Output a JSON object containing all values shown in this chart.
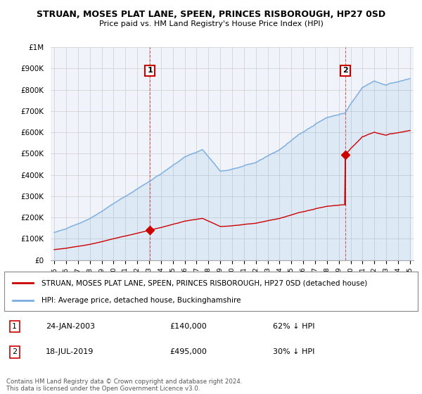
{
  "title": "STRUAN, MOSES PLAT LANE, SPEEN, PRINCES RISBOROUGH, HP27 0SD",
  "subtitle": "Price paid vs. HM Land Registry's House Price Index (HPI)",
  "hpi_label": "HPI: Average price, detached house, Buckinghamshire",
  "property_label": "STRUAN, MOSES PLAT LANE, SPEEN, PRINCES RISBOROUGH, HP27 0SD (detached house)",
  "hpi_color": "#7aace0",
  "price_color": "#cc0000",
  "sale1_year": 2003.07,
  "sale1_price": 140000,
  "sale1_date": "24-JAN-2003",
  "sale1_pct": "62% ↓ HPI",
  "sale2_year": 2019.54,
  "sale2_price": 495000,
  "sale2_date": "18-JUL-2019",
  "sale2_pct": "30% ↓ HPI",
  "ylim_max": 1000000,
  "xmin": 1995,
  "xmax": 2025,
  "footer": "Contains HM Land Registry data © Crown copyright and database right 2024.\nThis data is licensed under the Open Government Licence v3.0."
}
